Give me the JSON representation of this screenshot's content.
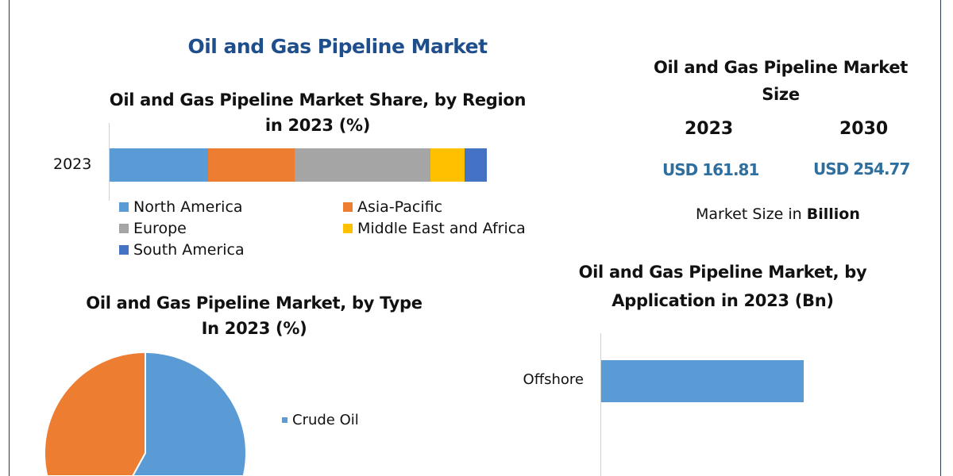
{
  "main_title": "Oil and Gas Pipeline Market",
  "market_size": {
    "title_line1": "Oil and Gas Pipeline Market",
    "title_line2": "Size",
    "years": [
      "2023",
      "2030"
    ],
    "values": [
      "USD 161.81",
      "USD 254.77"
    ],
    "unit_prefix": "Market Size in ",
    "unit_bold": "Billion",
    "value_color": "#2f6f9e"
  },
  "chart_data": [
    {
      "type": "bar",
      "orientation": "horizontal-stacked",
      "title_line1": "Oil and Gas Pipeline Market Share, by Region",
      "title_line2": "in 2023 (%)",
      "categories": [
        "2023"
      ],
      "series": [
        {
          "name": "North America",
          "values": [
            26
          ],
          "color": "#5b9bd5"
        },
        {
          "name": "Asia-Pacific",
          "values": [
            23
          ],
          "color": "#ed7d31"
        },
        {
          "name": "Europe",
          "values": [
            36
          ],
          "color": "#a5a5a5"
        },
        {
          "name": "Middle East and Africa",
          "values": [
            9
          ],
          "color": "#ffc000"
        },
        {
          "name": "South America",
          "values": [
            6
          ],
          "color": "#4472c4"
        }
      ],
      "legend": "bottom"
    },
    {
      "type": "pie",
      "title_line1": "Oil and Gas Pipeline Market, by Type",
      "title_line2": "In 2023 (%)",
      "slices": [
        {
          "name": "Crude Oil",
          "value": 58,
          "color": "#5b9bd5"
        },
        {
          "value": 42,
          "color": "#ed7d31"
        }
      ],
      "legend": "right"
    },
    {
      "type": "bar",
      "orientation": "horizontal",
      "title_line1": "Oil and Gas Pipeline Market, by",
      "title_line2": "Application in 2023 (Bn)",
      "categories": [
        "Offshore"
      ],
      "values": [
        0.75
      ],
      "color": "#5b9bd5"
    }
  ]
}
